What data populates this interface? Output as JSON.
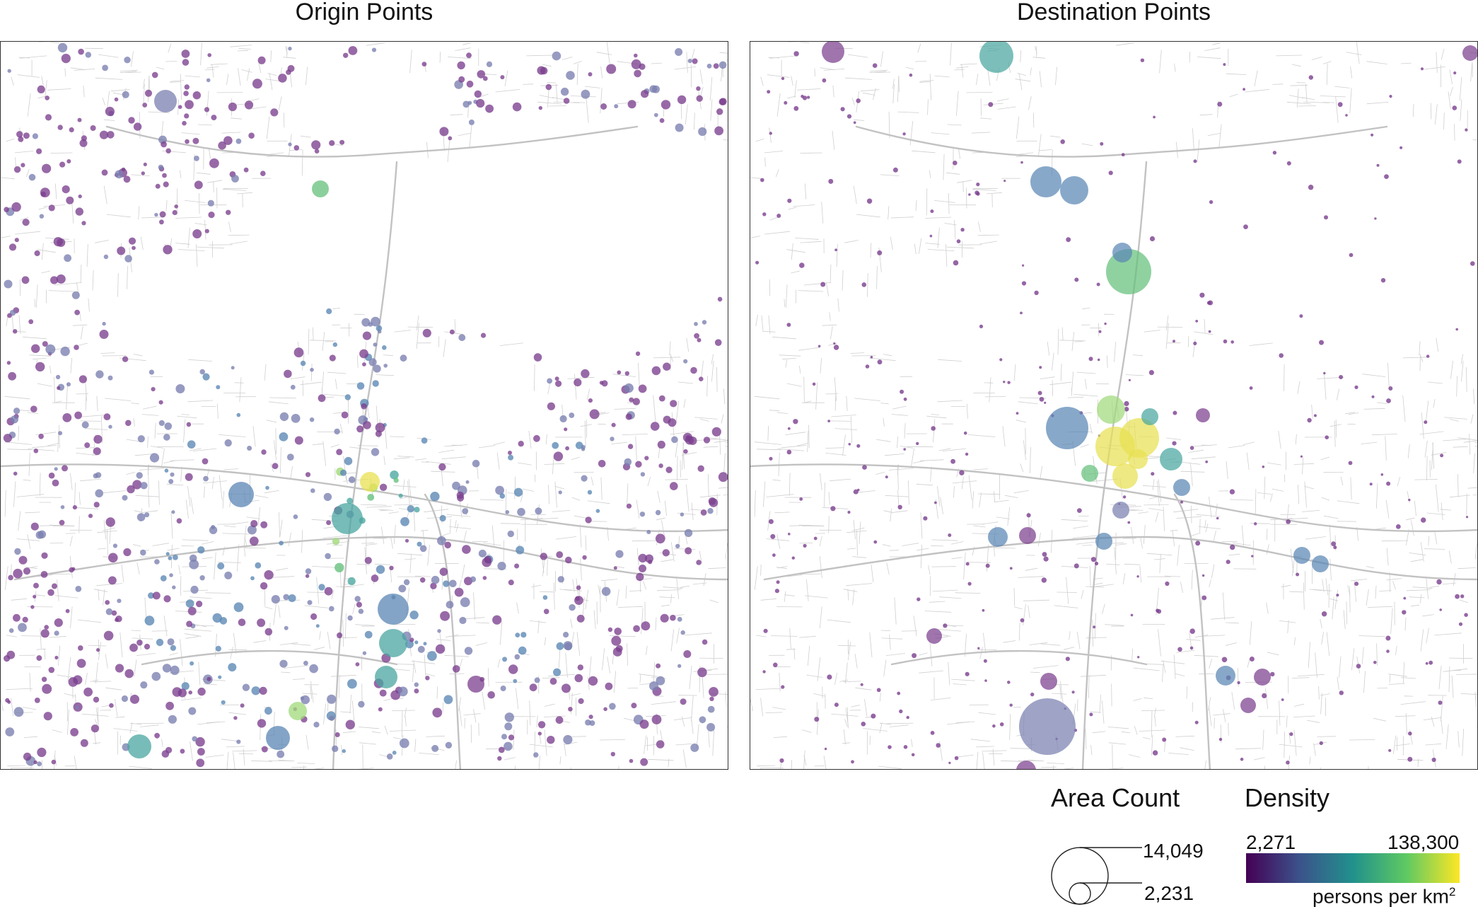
{
  "panels": {
    "origin": {
      "title": "Origin Points"
    },
    "destination": {
      "title": "Destination Points"
    }
  },
  "legend": {
    "area_count": {
      "title": "Area Count",
      "max_label": "14,049",
      "min_label": "2,231",
      "max_value": 14049,
      "min_value": 2231
    },
    "density": {
      "title": "Density",
      "min_label": "2,271",
      "max_label": "138,300",
      "unit_base": "persons per km",
      "unit_exp": "2",
      "min_value": 2271,
      "max_value": 138300,
      "colormap": [
        "#440154",
        "#3b528b",
        "#21918c",
        "#5ec962",
        "#fde725"
      ]
    }
  },
  "colors": {
    "road": "#cfcfcf",
    "road_major": "#c2c2c2",
    "frame": "#333333"
  }
}
